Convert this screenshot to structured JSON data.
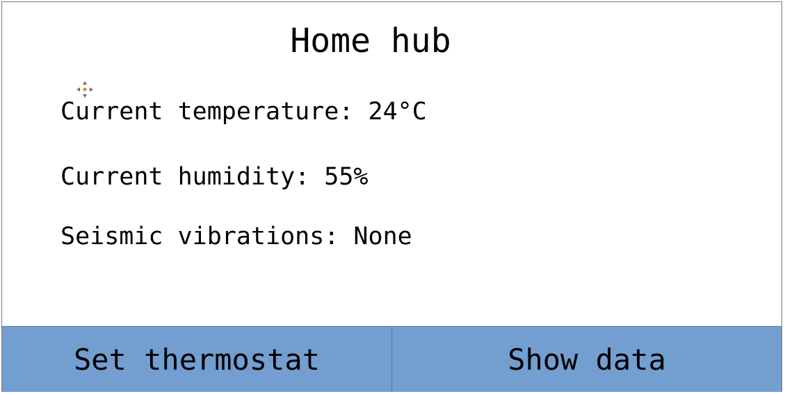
{
  "header": {
    "title": "Home hub"
  },
  "readings": {
    "temperature": "Current temperature: 24°C",
    "humidity": "Current humidity: 55%",
    "seismic": "Seismic vibrations: None"
  },
  "buttons": {
    "set_thermostat": "Set thermostat",
    "show_data": "Show data"
  },
  "colors": {
    "button_background": "#739ed0",
    "cursor_accent": "#e67e22"
  },
  "icons": {
    "cursor": "move-cursor-icon"
  }
}
